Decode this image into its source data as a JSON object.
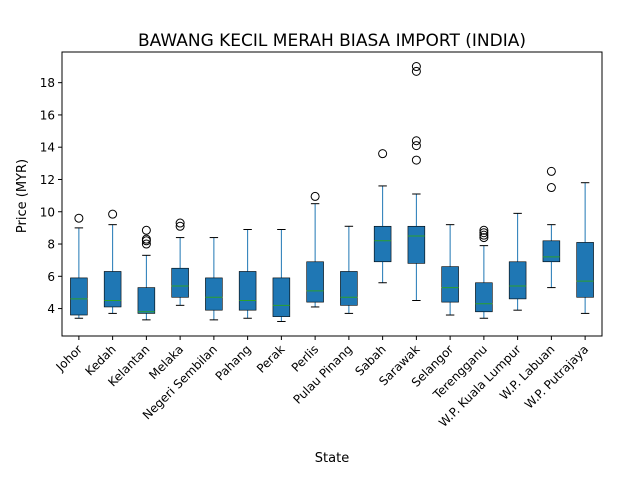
{
  "chart_data": {
    "type": "box",
    "title": "BAWANG KECIL MERAH BIASA IMPORT (INDIA)",
    "xlabel": "State",
    "ylabel": "Price (MYR)",
    "ylim": [
      2.3,
      19.9
    ],
    "yticks": [
      4,
      6,
      8,
      10,
      12,
      14,
      16,
      18
    ],
    "grid": false,
    "box_color": "#1f77b4",
    "median_color": "#2ca02c",
    "categories": [
      "Johor",
      "Kedah",
      "Kelantan",
      "Melaka",
      "Negeri Sembilan",
      "Pahang",
      "Perak",
      "Perlis",
      "Pulau Pinang",
      "Sabah",
      "Sarawak",
      "Selangor",
      "Terengganu",
      "W.P. Kuala Lumpur",
      "W.P. Labuan",
      "W.P. Putrajaya"
    ],
    "boxes": [
      {
        "min": 3.4,
        "q1": 3.6,
        "median": 4.6,
        "q3": 5.9,
        "max": 9.0,
        "outliers": [
          9.6
        ]
      },
      {
        "min": 3.7,
        "q1": 4.1,
        "median": 4.5,
        "q3": 6.3,
        "max": 9.2,
        "outliers": [
          9.85
        ]
      },
      {
        "min": 3.3,
        "q1": 3.7,
        "median": 3.8,
        "q3": 5.3,
        "max": 7.3,
        "outliers": [
          8.0,
          8.2,
          8.3,
          8.85
        ]
      },
      {
        "min": 4.2,
        "q1": 4.7,
        "median": 5.4,
        "q3": 6.5,
        "max": 8.4,
        "outliers": [
          9.1,
          9.3
        ]
      },
      {
        "min": 3.3,
        "q1": 3.9,
        "median": 4.7,
        "q3": 5.9,
        "max": 8.4,
        "outliers": []
      },
      {
        "min": 3.4,
        "q1": 3.9,
        "median": 4.5,
        "q3": 6.3,
        "max": 8.9,
        "outliers": []
      },
      {
        "min": 3.2,
        "q1": 3.5,
        "median": 4.2,
        "q3": 5.9,
        "max": 8.9,
        "outliers": []
      },
      {
        "min": 4.1,
        "q1": 4.4,
        "median": 5.1,
        "q3": 6.9,
        "max": 10.5,
        "outliers": [
          10.95
        ]
      },
      {
        "min": 3.7,
        "q1": 4.2,
        "median": 4.7,
        "q3": 6.3,
        "max": 9.1,
        "outliers": []
      },
      {
        "min": 5.6,
        "q1": 6.9,
        "median": 8.2,
        "q3": 9.1,
        "max": 11.6,
        "outliers": [
          13.6
        ]
      },
      {
        "min": 4.5,
        "q1": 6.8,
        "median": 8.5,
        "q3": 9.1,
        "max": 11.1,
        "outliers": [
          13.2,
          14.1,
          14.4,
          18.7,
          19.0
        ]
      },
      {
        "min": 3.6,
        "q1": 4.4,
        "median": 5.3,
        "q3": 6.6,
        "max": 9.2,
        "outliers": []
      },
      {
        "min": 3.4,
        "q1": 3.8,
        "median": 4.3,
        "q3": 5.6,
        "max": 7.9,
        "outliers": [
          8.4,
          8.55,
          8.7,
          8.85
        ]
      },
      {
        "min": 3.9,
        "q1": 4.6,
        "median": 5.4,
        "q3": 6.9,
        "max": 9.9,
        "outliers": []
      },
      {
        "min": 5.3,
        "q1": 6.9,
        "median": 7.2,
        "q3": 8.2,
        "max": 9.2,
        "outliers": [
          11.5,
          12.5
        ]
      },
      {
        "min": 3.7,
        "q1": 4.7,
        "median": 5.7,
        "q3": 8.1,
        "max": 11.8,
        "outliers": []
      }
    ]
  }
}
